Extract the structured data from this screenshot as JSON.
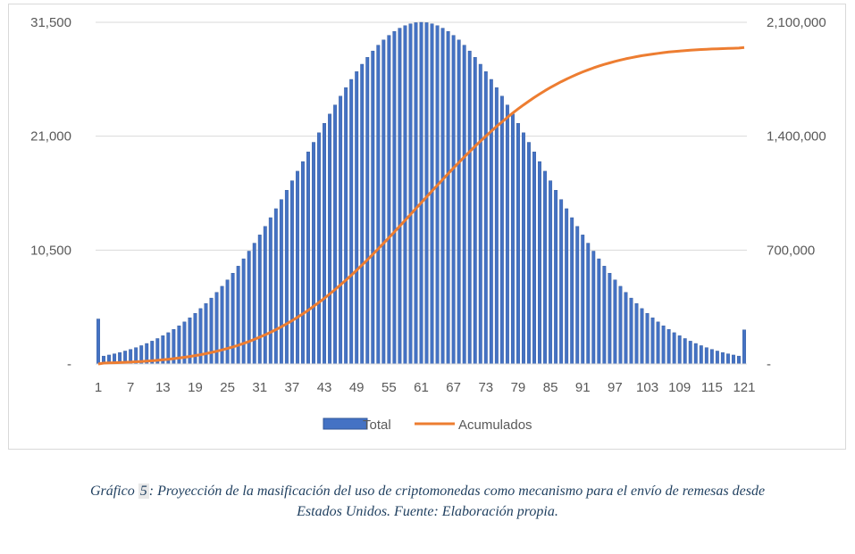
{
  "chart_data": {
    "type": "bar+line",
    "x_ticks": [
      1,
      7,
      13,
      19,
      25,
      31,
      37,
      43,
      49,
      55,
      61,
      67,
      73,
      79,
      85,
      91,
      97,
      103,
      109,
      115,
      121
    ],
    "x_range": [
      1,
      121
    ],
    "y_left": {
      "ticks": [
        "-",
        "10,500",
        "21,000",
        "31,500"
      ],
      "range": [
        0,
        31500
      ]
    },
    "y_right": {
      "ticks": [
        "-",
        "700,000",
        "1,400,000",
        "2,100,000"
      ],
      "range": [
        0,
        2100000
      ]
    },
    "grid": true,
    "legend_position": "bottom",
    "series": [
      {
        "name": "Total",
        "kind": "bar",
        "axis": "left",
        "color": "#4472c4",
        "distribution": "normal",
        "mean_x": 61,
        "sd_x": 21.5,
        "peak_value": 31500,
        "first_value": 4150,
        "last_value": 3150
      },
      {
        "name": "Acumulados",
        "kind": "line",
        "axis": "right",
        "color": "#ed7d31",
        "description_values": [
          {
            "x": 1,
            "y": 0
          },
          {
            "x": 49,
            "y": 660000
          },
          {
            "x": 61,
            "y": 1040000
          },
          {
            "x": 79,
            "y": 1520000
          },
          {
            "x": 121,
            "y": 1945000
          }
        ]
      }
    ]
  },
  "caption": {
    "prefix": "Gráfico ",
    "number": "5",
    "text_line1": ": Proyección de la masificación del uso de criptomonedas como mecanismo para el envío de remesas desde",
    "text_line2": "Estados Unidos. Fuente: Elaboración propia."
  }
}
